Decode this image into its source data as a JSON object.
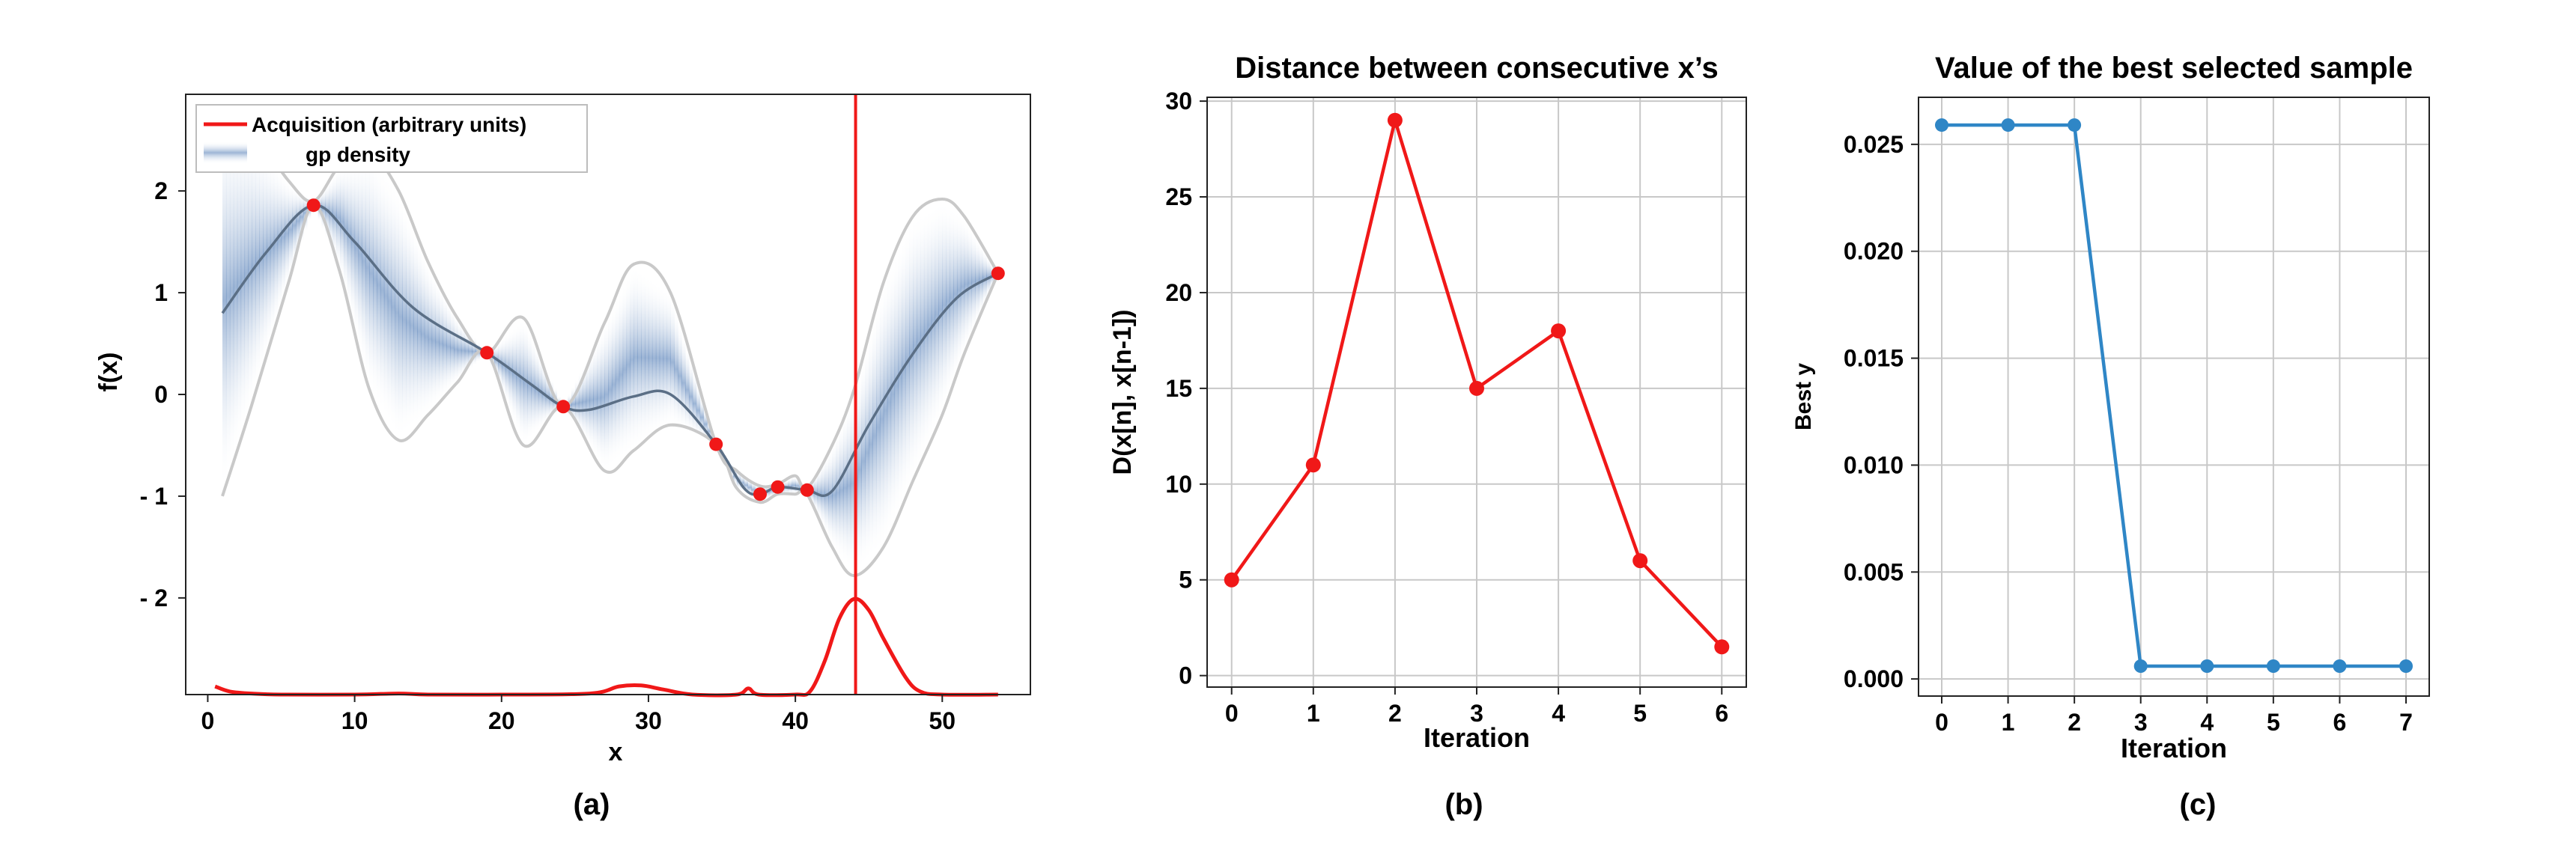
{
  "colors": {
    "red": "#f01818",
    "blue": "#2f86c6",
    "gp_mean": "#5b6f86",
    "gp_band": "#c9c9c9",
    "shade": "#4d79b4",
    "grid": "#c8c8c8"
  },
  "panel_a": {
    "caption": "(a)",
    "legend": {
      "acquisition": "Acquisition  (arbitrary units)",
      "density": "gp density"
    }
  },
  "panel_b": {
    "caption": "(b)"
  },
  "panel_c": {
    "caption": "(c)"
  },
  "chart_data": [
    {
      "id": "a",
      "type": "line",
      "title": "",
      "xlabel": "x",
      "ylabel": "f(x)",
      "xlim": [
        -1.5,
        56
      ],
      "ylim": [
        -2.95,
        2.95
      ],
      "xticks": [
        0,
        10,
        20,
        30,
        40,
        50
      ],
      "yticks": [
        2,
        1,
        0,
        -1,
        -2
      ],
      "ytick_labels": [
        "2",
        "1",
        "0",
        "- 1",
        "- 2"
      ],
      "grid": false,
      "legend_position": "top-left",
      "samples": {
        "x": [
          7.2,
          19,
          24.2,
          34.6,
          37.6,
          38.8,
          40.8,
          53.8
        ],
        "y": [
          1.86,
          0.41,
          -0.12,
          -0.49,
          -0.98,
          -0.91,
          -0.94,
          1.19
        ]
      },
      "gp_mean": {
        "x": [
          1,
          4,
          7.2,
          10,
          14,
          19,
          22,
          24.2,
          26,
          29,
          31.5,
          34.6,
          36.5,
          37.6,
          38.8,
          40.8,
          42.5,
          45,
          48,
          51,
          53.8
        ],
        "y": [
          0.8,
          1.4,
          1.86,
          1.5,
          0.85,
          0.41,
          0.1,
          -0.12,
          -0.15,
          -0.02,
          0.0,
          -0.49,
          -0.92,
          -0.98,
          -0.91,
          -0.94,
          -0.95,
          -0.3,
          0.4,
          0.95,
          1.19
        ]
      },
      "gp_upper": {
        "x": [
          1,
          3,
          5.5,
          7.2,
          9,
          11,
          13,
          15,
          17,
          19,
          21.5,
          24.2,
          27,
          29,
          31.5,
          34.6,
          36,
          37.6,
          38.8,
          40,
          40.8,
          42.5,
          44,
          46,
          48,
          50,
          51.5,
          53.8
        ],
        "y": [
          2.8,
          2.6,
          2.1,
          1.9,
          2.25,
          2.38,
          2.0,
          1.3,
          0.75,
          0.41,
          0.75,
          -0.12,
          0.7,
          1.28,
          1.0,
          -0.49,
          -0.75,
          -0.9,
          -0.88,
          -0.8,
          -0.92,
          -0.5,
          0.05,
          1.1,
          1.75,
          1.92,
          1.75,
          1.19
        ]
      },
      "gp_lower": {
        "x": [
          1,
          3,
          5.5,
          7.2,
          9,
          11,
          13,
          15,
          17,
          19,
          21.5,
          24.2,
          27,
          29,
          31.5,
          34.6,
          36,
          37.6,
          38.8,
          40,
          40.8,
          42.5,
          44,
          46,
          48,
          50,
          51.5,
          53.8
        ],
        "y": [
          -1.0,
          -0.1,
          1.1,
          1.86,
          1.2,
          0.05,
          -0.45,
          -0.2,
          0.12,
          0.41,
          -0.5,
          -0.12,
          -0.75,
          -0.55,
          -0.3,
          -0.49,
          -0.92,
          -1.06,
          -0.98,
          -0.98,
          -0.98,
          -1.5,
          -1.78,
          -1.5,
          -0.85,
          -0.2,
          0.4,
          1.19
        ]
      },
      "acquisition": {
        "x": [
          0.5,
          1.5,
          3,
          5,
          10,
          13,
          15,
          20,
          26,
          28,
          29.5,
          31,
          33,
          36,
          36.8,
          37.5,
          40,
          41,
          42,
          43,
          44,
          45,
          46,
          47.5,
          48.5,
          50,
          53.8
        ],
        "y": [
          -2.87,
          -2.92,
          -2.94,
          -2.95,
          -2.95,
          -2.94,
          -2.95,
          -2.95,
          -2.94,
          -2.87,
          -2.86,
          -2.9,
          -2.95,
          -2.95,
          -2.89,
          -2.95,
          -2.95,
          -2.92,
          -2.62,
          -2.2,
          -2.01,
          -2.12,
          -2.4,
          -2.78,
          -2.92,
          -2.95,
          -2.95
        ]
      },
      "vline_x": 44.1
    },
    {
      "id": "b",
      "type": "line",
      "title": "Distance between consecutive x’s",
      "xlabel": "Iteration",
      "ylabel": "D(x[n], x[n-1])",
      "xlim": [
        -0.3,
        6.3
      ],
      "ylim": [
        -0.6,
        30.2
      ],
      "xticks": [
        0,
        1,
        2,
        3,
        4,
        5,
        6
      ],
      "yticks": [
        0,
        5,
        10,
        15,
        20,
        25,
        30
      ],
      "grid": true,
      "x": [
        0,
        1,
        2,
        3,
        4,
        5,
        6
      ],
      "y": [
        5,
        11,
        29,
        15,
        18,
        6,
        1.5
      ]
    },
    {
      "id": "c",
      "type": "line",
      "title": "Value of the best selected sample",
      "xlabel": "Iteration",
      "ylabel": "Best y",
      "xlim": [
        -0.35,
        7.35
      ],
      "ylim": [
        -0.0008,
        0.0272
      ],
      "xticks": [
        0,
        1,
        2,
        3,
        4,
        5,
        6,
        7
      ],
      "yticks": [
        0.0,
        0.005,
        0.01,
        0.015,
        0.02,
        0.025
      ],
      "ytick_labels": [
        "0.000",
        "0.005",
        "0.010",
        "0.015",
        "0.020",
        "0.025"
      ],
      "grid": true,
      "x": [
        0,
        1,
        2,
        3,
        4,
        5,
        6,
        7
      ],
      "y": [
        0.0259,
        0.0259,
        0.0259,
        0.0006,
        0.0006,
        0.0006,
        0.0006,
        0.0006
      ]
    }
  ]
}
